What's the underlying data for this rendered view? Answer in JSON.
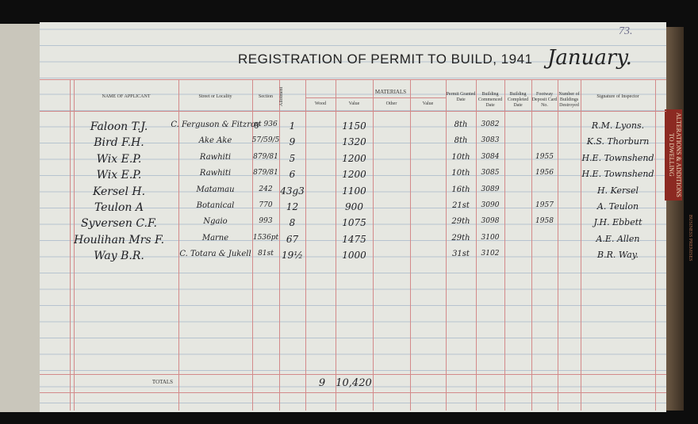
{
  "header": {
    "page_number": "73.",
    "title": "REGISTRATION OF PERMIT TO BUILD, 1941",
    "month": "January."
  },
  "materials_group": "MATERIALS",
  "columns": [
    "NAME OF APPLICANT",
    "Street or Locality",
    "Section",
    "Allotment",
    "Wood",
    "Value",
    "Other",
    "Value",
    "Permit Granted Date",
    "Building Commenced Date",
    "Building Completed Date",
    "Footway Deposit Card No.",
    "Number of Buildings Destroyed",
    "Signature of Inspector"
  ],
  "rows": [
    {
      "name": "Faloon  T.J.",
      "street": "C. Ferguson & Fitzroy",
      "section": "pt 936",
      "allotment": "1",
      "value": "1150",
      "permit_date": "8th",
      "commenced_date": "3082",
      "signature": "R.M. Lyons."
    },
    {
      "name": "Bird  F.H.",
      "street": "Ake Ake",
      "section": "57/59/5",
      "allotment": "9",
      "value": "1320",
      "permit_date": "8th",
      "commenced_date": "3083",
      "signature": "K.S. Thorburn"
    },
    {
      "name": "Wix  E.P.",
      "street": "Rawhiti",
      "section": "879/81",
      "allotment": "5",
      "value": "1200",
      "permit_date": "10th",
      "commenced_date": "3084",
      "footway_card": "1955",
      "signature": "H.E. Townshend"
    },
    {
      "name": "Wix  E.P.",
      "street": "Rawhiti",
      "section": "879/81",
      "allotment": "6",
      "value": "1200",
      "permit_date": "10th",
      "commenced_date": "3085",
      "footway_card": "1956",
      "signature": "H.E. Townshend"
    },
    {
      "name": "Kersel  H.",
      "street": "Matamau",
      "section": "242",
      "allotment": "43g3",
      "value": "1100",
      "permit_date": "16th",
      "commenced_date": "3089",
      "signature": "H. Kersel"
    },
    {
      "name": "Teulon  A",
      "street": "Botanical",
      "section": "770",
      "allotment": "12",
      "value": "900",
      "permit_date": "21st",
      "commenced_date": "3090",
      "footway_card": "1957",
      "signature": "A. Teulon"
    },
    {
      "name": "Syversen  C.F.",
      "street": "Ngaio",
      "section": "993",
      "allotment": "8",
      "value": "1075",
      "permit_date": "29th",
      "commenced_date": "3098",
      "footway_card": "1958",
      "signature": "J.H. Ebbett"
    },
    {
      "name": "Houlihan  Mrs F.",
      "street": "Marne",
      "section": "1536pt",
      "allotment": "67",
      "value": "1475",
      "permit_date": "29th",
      "commenced_date": "3100",
      "signature": "A.E. Allen"
    },
    {
      "name": "Way  B.R.",
      "street": "C. Totara & Jukell",
      "section": "81st",
      "allotment": "19½",
      "value": "1000",
      "permit_date": "31st",
      "commenced_date": "3102",
      "signature": "B.R. Way."
    }
  ],
  "totals": {
    "label": "TOTALS",
    "wood": "9",
    "value": "10,420"
  },
  "side_tabs": [
    "ALTERATIONS & ADDITIONS TO DWELLING",
    "BUSINESS PREMISES"
  ]
}
